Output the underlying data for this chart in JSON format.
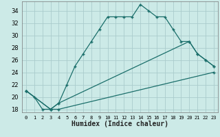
{
  "xlabel": "Humidex (Indice chaleur)",
  "bg_color": "#cceae7",
  "grid_color": "#aacccc",
  "line_color": "#1a6e6a",
  "xlim": [
    -0.5,
    23.5
  ],
  "ylim": [
    17.5,
    35.5
  ],
  "xticks": [
    0,
    1,
    2,
    3,
    4,
    5,
    6,
    7,
    8,
    9,
    10,
    11,
    12,
    13,
    14,
    15,
    16,
    17,
    18,
    19,
    20,
    21,
    22,
    23
  ],
  "yticks": [
    18,
    20,
    22,
    24,
    26,
    28,
    30,
    32,
    34
  ],
  "line1_x": [
    0,
    1,
    2,
    3,
    4,
    5,
    6,
    7,
    8,
    9,
    10,
    11,
    12,
    13,
    14,
    15,
    16,
    17,
    18,
    19,
    20,
    21,
    22,
    23
  ],
  "line1_y": [
    21,
    20,
    18,
    18,
    19,
    22,
    25,
    27,
    29,
    31,
    33,
    33,
    33,
    33,
    35,
    34,
    33,
    33,
    31,
    29,
    29,
    27,
    26,
    25
  ],
  "line2_x": [
    0,
    3,
    4,
    20,
    21,
    22,
    23
  ],
  "line2_y": [
    21,
    18,
    19,
    29,
    27,
    26,
    25
  ],
  "line3_x": [
    0,
    3,
    4,
    23
  ],
  "line3_y": [
    21,
    18,
    18,
    24
  ],
  "marker": "+"
}
